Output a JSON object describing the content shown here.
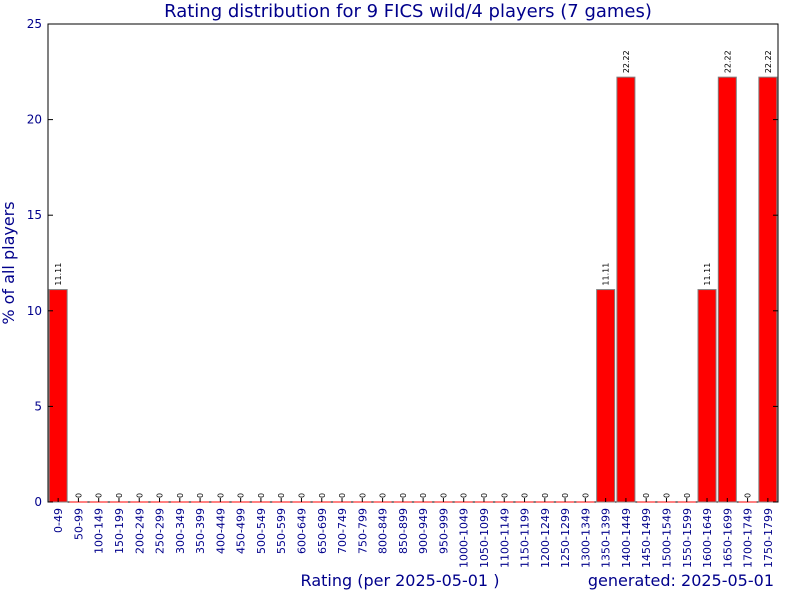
{
  "chart_data": {
    "type": "bar",
    "title": "Rating distribution for 9 FICS wild/4 players (7 games)",
    "xlabel": "Rating (per 2025-05-01 )",
    "ylabel": "% of all players",
    "footer": "generated: 2025-05-01",
    "ylim": [
      0,
      25
    ],
    "yticks": [
      0,
      5,
      10,
      15,
      20,
      25
    ],
    "grid": false,
    "legend": "none",
    "bar_color": "#ff0000",
    "bar_edge_color": "#808080",
    "text_color": "#00008b",
    "categories": [
      "0-49",
      "50-99",
      "100-149",
      "150-199",
      "200-249",
      "250-299",
      "300-349",
      "350-399",
      "400-449",
      "450-499",
      "500-549",
      "550-599",
      "600-649",
      "650-699",
      "700-749",
      "750-799",
      "800-849",
      "850-899",
      "900-949",
      "950-999",
      "1000-1049",
      "1050-1099",
      "1100-1149",
      "1150-1199",
      "1200-1249",
      "1250-1299",
      "1300-1349",
      "1350-1399",
      "1400-1449",
      "1450-1499",
      "1500-1549",
      "1550-1599",
      "1600-1649",
      "1650-1699",
      "1700-1749",
      "1750-1799"
    ],
    "values": [
      11.11,
      0,
      0,
      0,
      0,
      0,
      0,
      0,
      0,
      0,
      0,
      0,
      0,
      0,
      0,
      0,
      0,
      0,
      0,
      0,
      0,
      0,
      0,
      0,
      0,
      0,
      0,
      11.11,
      22.22,
      0,
      0,
      0,
      11.11,
      22.22,
      0,
      22.22
    ],
    "data_labels": [
      "11.11",
      "0",
      "0",
      "0",
      "0",
      "0",
      "0",
      "0",
      "0",
      "0",
      "0",
      "0",
      "0",
      "0",
      "0",
      "0",
      "0",
      "0",
      "0",
      "0",
      "0",
      "0",
      "0",
      "0",
      "0",
      "0",
      "0",
      "11.11",
      "22.22",
      "0",
      "0",
      "0",
      "11.11",
      "22.22",
      "0",
      "22.22"
    ]
  }
}
